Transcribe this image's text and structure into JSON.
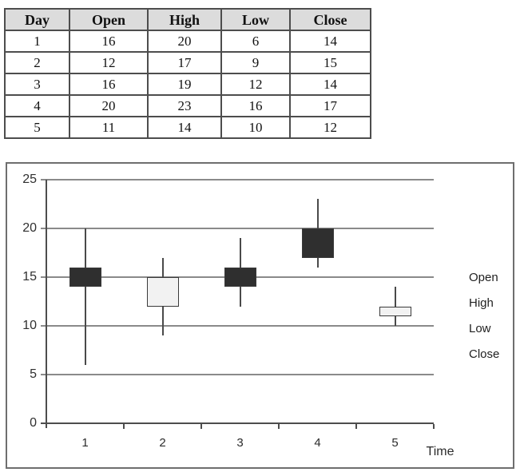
{
  "table": {
    "columns": [
      "Day",
      "Open",
      "High",
      "Low",
      "Close"
    ],
    "rows": [
      [
        1,
        16,
        20,
        6,
        14
      ],
      [
        2,
        12,
        17,
        9,
        15
      ],
      [
        3,
        16,
        19,
        12,
        14
      ],
      [
        4,
        20,
        23,
        16,
        17
      ],
      [
        5,
        11,
        14,
        10,
        12
      ]
    ]
  },
  "chart_data": {
    "type": "candlestick",
    "categories": [
      "1",
      "2",
      "3",
      "4",
      "5"
    ],
    "series": [
      {
        "name": "Open",
        "values": [
          16,
          12,
          16,
          20,
          11
        ]
      },
      {
        "name": "High",
        "values": [
          20,
          17,
          19,
          23,
          14
        ]
      },
      {
        "name": "Low",
        "values": [
          6,
          9,
          12,
          16,
          10
        ]
      },
      {
        "name": "Close",
        "values": [
          14,
          15,
          14,
          17,
          12
        ]
      }
    ],
    "title": "",
    "xlabel": "Time",
    "ylabel": "",
    "ylim": [
      0,
      25
    ],
    "yticks": [
      0,
      5,
      10,
      15,
      20,
      25
    ],
    "legend": [
      "Open",
      "High",
      "Low",
      "Close"
    ],
    "legend_position": "right",
    "grid": true
  },
  "colors": {
    "candle_bearish": "#2f2f2f",
    "candle_bullish": "#f2f2f2",
    "candle_border": "#3a3a3a",
    "wick": "#4a4a4a",
    "gridline": "#8a8a8a",
    "axis": "#4d4d4d",
    "table_header_bg": "#dcdcdc",
    "table_border": "#4d4d4d"
  }
}
